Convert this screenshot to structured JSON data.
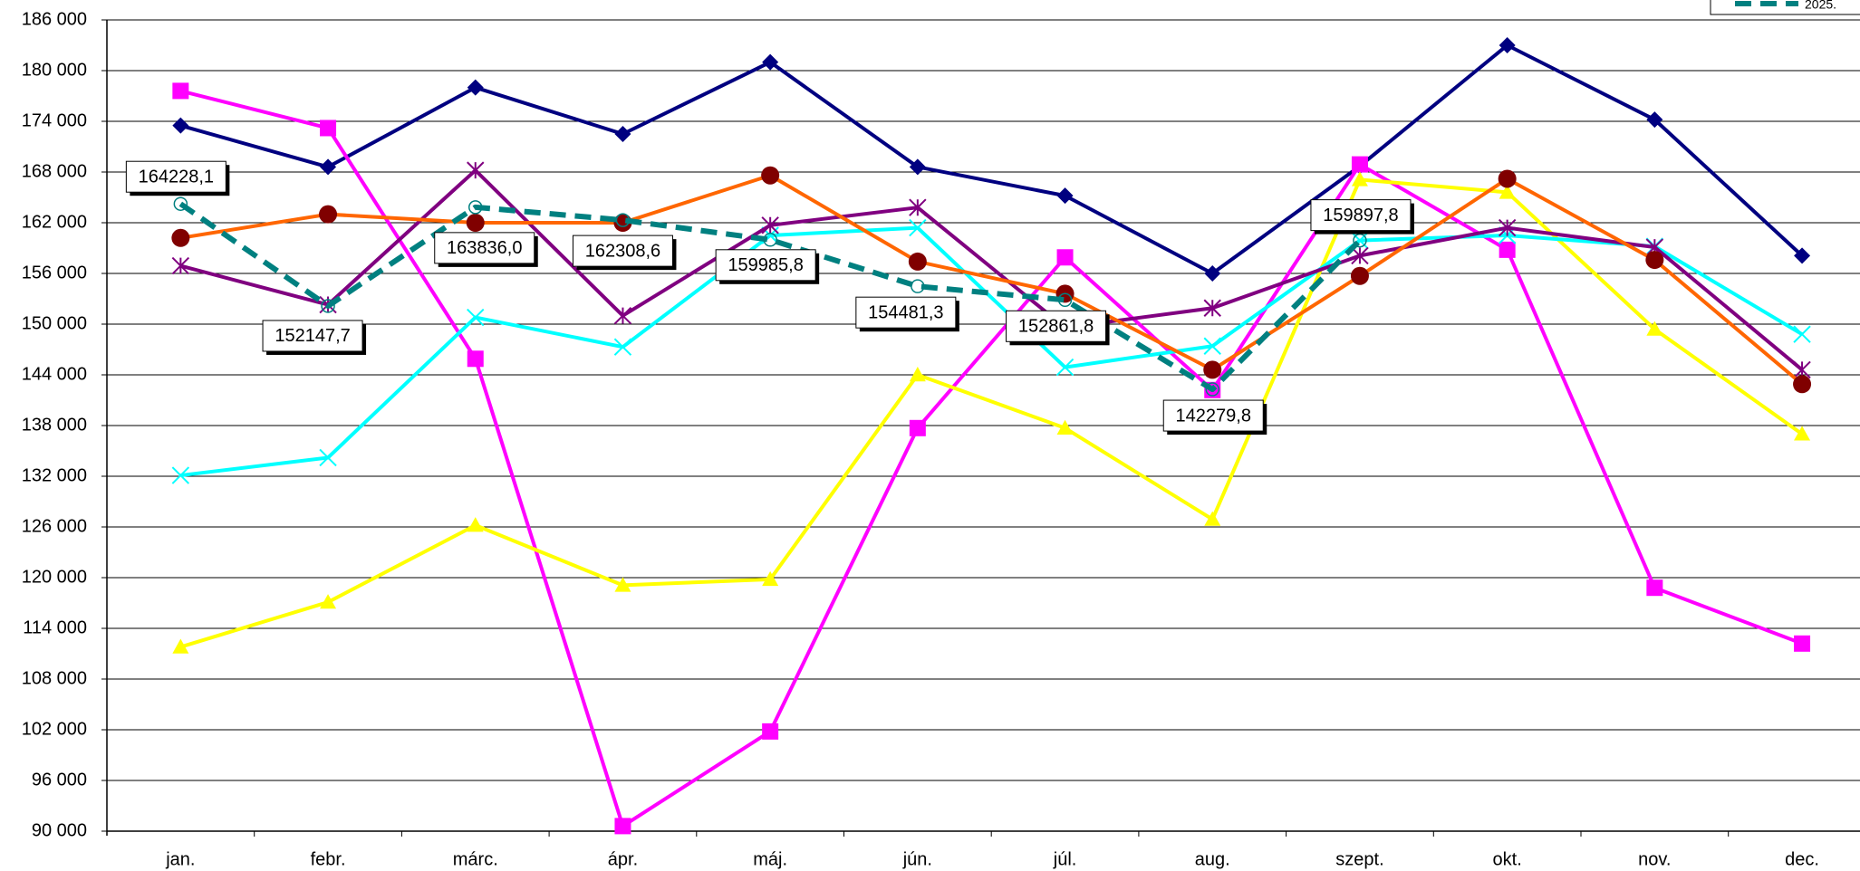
{
  "chart_data": {
    "type": "line",
    "categories": [
      "jan.",
      "febr.",
      "márc.",
      "ápr.",
      "máj.",
      "jún.",
      "júl.",
      "aug.",
      "szept.",
      "okt.",
      "nov.",
      "dec."
    ],
    "ylim": [
      90000,
      186000
    ],
    "yticks": [
      {
        "value": 90000,
        "label": "90 000"
      },
      {
        "value": 96000,
        "label": "96 000"
      },
      {
        "value": 102000,
        "label": "102 000"
      },
      {
        "value": 108000,
        "label": "108 000"
      },
      {
        "value": 114000,
        "label": "114 000"
      },
      {
        "value": 120000,
        "label": "120 000"
      },
      {
        "value": 126000,
        "label": "126 000"
      },
      {
        "value": 132000,
        "label": "132 000"
      },
      {
        "value": 138000,
        "label": "138 000"
      },
      {
        "value": 144000,
        "label": "144 000"
      },
      {
        "value": 150000,
        "label": "150 000"
      },
      {
        "value": 156000,
        "label": "156 000"
      },
      {
        "value": 162000,
        "label": "162 000"
      },
      {
        "value": 168000,
        "label": "168 000"
      },
      {
        "value": 174000,
        "label": "174 000"
      },
      {
        "value": 180000,
        "label": "180 000"
      },
      {
        "value": 186000,
        "label": "186 000"
      }
    ],
    "grid": true,
    "legend": "top-right",
    "series": [
      {
        "color": "#000080",
        "marker": "diamond",
        "values": [
          173500,
          168600,
          178000,
          172500,
          181000,
          168600,
          165200,
          156000,
          168700,
          183000,
          174200,
          158100
        ]
      },
      {
        "color": "#ff00ff",
        "marker": "square",
        "values": [
          177600,
          173200,
          145900,
          90600,
          101800,
          137700,
          157900,
          142200,
          168900,
          158800,
          118800,
          112200
        ]
      },
      {
        "color": "#ffff00",
        "marker": "triangle",
        "values": [
          111800,
          117100,
          126200,
          119100,
          119800,
          144000,
          137700,
          126900,
          167100,
          165600,
          149400,
          137000
        ]
      },
      {
        "color": "#00ffff",
        "marker": "x",
        "values": [
          132100,
          134200,
          150800,
          147300,
          160500,
          161400,
          144900,
          147400,
          159900,
          160500,
          159200,
          148800
        ]
      },
      {
        "color": "#800080",
        "marker": "star",
        "values": [
          156900,
          152300,
          168200,
          151000,
          161700,
          163800,
          149600,
          151900,
          158100,
          161400,
          159100,
          144600
        ]
      },
      {
        "color": "#ff6600",
        "marker_color": "#800000",
        "marker": "circle",
        "values": [
          160200,
          163000,
          162000,
          162000,
          167600,
          157400,
          153600,
          144600,
          155700,
          167200,
          157600,
          142900
        ]
      },
      {
        "name": "2025.",
        "color": "#008080",
        "marker": "ring",
        "dashed": true,
        "values": [
          164228.1,
          152147.7,
          163836.0,
          162308.6,
          159985.8,
          154481.3,
          152861.8,
          142279.8,
          159897.8,
          null,
          null,
          null
        ],
        "value_labels": [
          "164228,1",
          "152147,7",
          "163836,0",
          "162308,6",
          "159985,8",
          "154481,3",
          "152861,8",
          "142279,8",
          "159897,8",
          null,
          null,
          null
        ]
      }
    ]
  }
}
